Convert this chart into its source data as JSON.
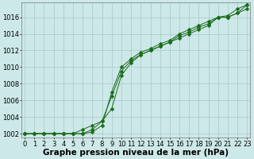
{
  "line1": {
    "x": [
      0,
      1,
      2,
      3,
      4,
      5,
      6,
      7,
      8,
      9,
      10,
      11,
      12,
      13,
      14,
      15,
      16,
      17,
      18,
      19,
      20,
      21,
      22,
      23
    ],
    "y": [
      1002,
      1002,
      1002,
      1002,
      1002,
      1002,
      1002.5,
      1003,
      1003.5,
      1005,
      1009,
      1010.5,
      1011.5,
      1012,
      1012.5,
      1013,
      1013.5,
      1014,
      1014.5,
      1015,
      1016,
      1016.2,
      1017,
      1017.5
    ]
  },
  "line2": {
    "x": [
      0,
      1,
      2,
      3,
      4,
      5,
      6,
      7,
      8,
      9,
      10,
      11,
      12,
      13,
      14,
      15,
      16,
      17,
      18,
      19,
      20,
      21,
      22,
      23
    ],
    "y": [
      1002,
      1002,
      1002,
      1002,
      1002,
      1002,
      1002,
      1002.5,
      1003.5,
      1006.5,
      1009.5,
      1010.8,
      1011.5,
      1012,
      1012.5,
      1013,
      1013.8,
      1014.2,
      1014.8,
      1015.2,
      1016,
      1016,
      1016.5,
      1017
    ]
  },
  "line3": {
    "x": [
      0,
      1,
      2,
      3,
      4,
      5,
      6,
      7,
      8,
      9,
      10,
      11,
      12,
      13,
      14,
      15,
      16,
      17,
      18,
      19,
      20,
      21,
      22,
      23
    ],
    "y": [
      1002,
      1002,
      1002,
      1002,
      1002,
      1002,
      1002,
      1002.2,
      1003,
      1007,
      1010,
      1011,
      1011.8,
      1012.2,
      1012.8,
      1013.2,
      1014,
      1014.5,
      1015,
      1015.5,
      1016,
      1016,
      1016.5,
      1017.5
    ]
  },
  "line_color": "#1a6b1a",
  "marker": "D",
  "marker_size": 2.5,
  "background_color": "#cde8e8",
  "grid_color": "#a8c8c8",
  "xlabel": "Graphe pression niveau de la mer (hPa)",
  "ylim": [
    1001.5,
    1017.8
  ],
  "yticks": [
    1002,
    1004,
    1006,
    1008,
    1010,
    1012,
    1014,
    1016
  ],
  "xticks": [
    0,
    1,
    2,
    3,
    4,
    5,
    6,
    7,
    8,
    9,
    10,
    11,
    12,
    13,
    14,
    15,
    16,
    17,
    18,
    19,
    20,
    21,
    22,
    23
  ],
  "xlabel_fontsize": 7.5,
  "tick_fontsize": 6,
  "linewidth": 0.7
}
